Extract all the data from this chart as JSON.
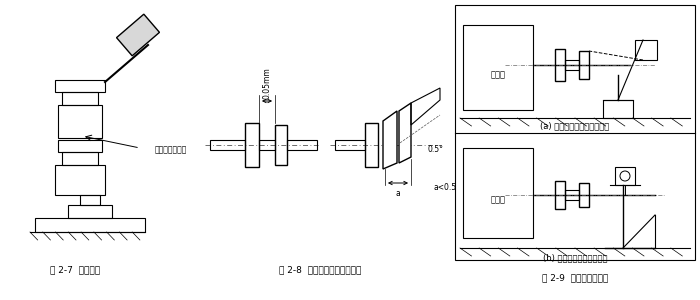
{
  "bg_color": "#ffffff",
  "line_color": "#000000",
  "fig_width": 7.0,
  "fig_height": 3.0,
  "dpi": 100,
  "captions": {
    "fig7": "图 2-7  注意事项",
    "fig8": "图 2-8  联轴器之间的安装精度",
    "fig9": "图 2-9  安装精度的检查"
  },
  "labels": {
    "copper_rod": "此处应垫一铜棒",
    "dim_05mm": "0.05mm",
    "angle_05": "0.5°",
    "a_lt_05": "a<0.5",
    "a_label": "a",
    "yuandongji_a": "原动机",
    "yuandongji_b": "原动机",
    "sub_a": "(a) 用百分表检查联轴器端面",
    "sub_b": "(b) 用百分表检查支座端面"
  }
}
